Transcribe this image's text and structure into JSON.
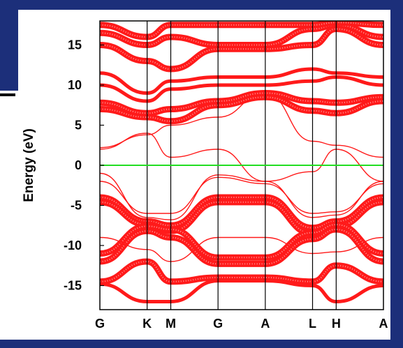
{
  "chart_data": {
    "type": "line",
    "title": "",
    "xlabel": "",
    "ylabel": "Energy (eV)",
    "ylim": [
      -18,
      18
    ],
    "yticks": [
      15,
      10,
      5,
      0,
      -5,
      -10,
      -15
    ],
    "k_points": [
      "G",
      "K",
      "M",
      "G",
      "A",
      "L",
      "H",
      "A"
    ],
    "k_positions": [
      0,
      1,
      1.5,
      2.5,
      3.5,
      4.5,
      5,
      6
    ],
    "fermi_level": 0,
    "colors": {
      "bands": "#ff1a1a",
      "fermi": "#22dd22",
      "frame": "#000000",
      "background_band": "#1c2f7a"
    },
    "series": [
      {
        "x": [
          0,
          1,
          1.5,
          2.5,
          3.5,
          4.5,
          5,
          6
        ],
        "values": [
          -4,
          -7,
          -7.5,
          -4,
          -4,
          -7.8,
          -7,
          -4
        ],
        "weight": "heavy"
      },
      {
        "x": [
          0,
          1,
          1.5,
          2.5,
          3.5,
          4.5,
          5,
          6
        ],
        "values": [
          -4.6,
          -7.4,
          -8.2,
          -4.6,
          -4.6,
          -8.5,
          -7.6,
          -4.6
        ],
        "weight": "heavy"
      },
      {
        "x": [
          0,
          1,
          1.5,
          2.5,
          3.5,
          4.5,
          5,
          6
        ],
        "values": [
          -11,
          -7.6,
          -8,
          -11.5,
          -11.5,
          -8.4,
          -7.4,
          -11
        ],
        "weight": "heavy"
      },
      {
        "x": [
          0,
          1,
          1.5,
          2.5,
          3.5,
          4.5,
          5,
          6
        ],
        "values": [
          -12,
          -8.2,
          -9,
          -12.3,
          -12.3,
          -9.2,
          -8,
          -12
        ],
        "weight": "heavy"
      },
      {
        "x": [
          0,
          1,
          1.5,
          2.5,
          3.5,
          4.5,
          5,
          6
        ],
        "values": [
          -14.5,
          -12,
          -14.5,
          -14,
          -14,
          -14.5,
          -12.5,
          -14.5
        ],
        "weight": "heavy"
      },
      {
        "x": [
          0,
          1,
          1.5,
          2.5,
          3.5,
          4.5,
          5,
          6
        ],
        "values": [
          -14.8,
          -17,
          -17,
          -14.4,
          -14.4,
          -15,
          -17,
          -15
        ],
        "weight": "medium"
      },
      {
        "x": [
          0,
          1,
          1.5,
          2.5,
          3.5,
          4.5,
          5,
          6
        ],
        "values": [
          -1,
          -6.5,
          -6.8,
          -1.2,
          -2,
          -6.5,
          -6.2,
          -2
        ],
        "weight": "thin"
      },
      {
        "x": [
          0,
          1,
          1.5,
          2.5,
          3.5,
          4.5,
          5,
          6
        ],
        "values": [
          -2,
          -6,
          -6,
          -1.5,
          -2.3,
          -6,
          -5.8,
          -2.3
        ],
        "weight": "thin"
      },
      {
        "x": [
          0,
          1,
          1.5,
          2.5,
          3.5,
          4.5,
          5,
          6
        ],
        "values": [
          -9,
          -10.5,
          -12,
          -9,
          -9,
          -11,
          -10.8,
          -9
        ],
        "weight": "thin"
      },
      {
        "x": [
          0,
          1,
          1.5,
          2.5,
          3.5,
          4.5,
          5,
          6
        ],
        "values": [
          2,
          4,
          1,
          2,
          -2,
          -0.8,
          2,
          -2
        ],
        "weight": "thin"
      },
      {
        "x": [
          0,
          1,
          1.5,
          2.5,
          3.5,
          4.5,
          5,
          6
        ],
        "values": [
          2.2,
          3.8,
          5,
          6,
          9,
          3,
          2.5,
          1
        ],
        "weight": "thin"
      },
      {
        "x": [
          0,
          1,
          1.5,
          2.5,
          3.5,
          4.5,
          5,
          6
        ],
        "values": [
          7,
          6,
          5.5,
          7.5,
          8.5,
          6.8,
          6.5,
          8
        ],
        "weight": "heavy"
      },
      {
        "x": [
          0,
          1,
          1.5,
          2.5,
          3.5,
          4.5,
          5,
          6
        ],
        "values": [
          7.8,
          6.5,
          7,
          8,
          9,
          8,
          7.8,
          8.5
        ],
        "weight": "heavy"
      },
      {
        "x": [
          0,
          1,
          1.5,
          2.5,
          3.5,
          4.5,
          5,
          6
        ],
        "values": [
          10,
          8,
          9.5,
          10,
          10,
          10.5,
          11,
          10
        ],
        "weight": "medium"
      },
      {
        "x": [
          0,
          1,
          1.5,
          2.5,
          3.5,
          4.5,
          5,
          6
        ],
        "values": [
          11.5,
          9,
          10.5,
          11,
          11,
          12,
          11.5,
          11
        ],
        "weight": "medium"
      },
      {
        "x": [
          0,
          1,
          1.5,
          2.5,
          3.5,
          4.5,
          5,
          6
        ],
        "values": [
          15,
          13,
          12,
          14.5,
          14.5,
          15,
          17,
          15
        ],
        "weight": "heavy"
      },
      {
        "x": [
          0,
          1,
          1.5,
          2.5,
          3.5,
          4.5,
          5,
          6
        ],
        "values": [
          16.5,
          15,
          16,
          15,
          15,
          17,
          17.5,
          16
        ],
        "weight": "heavy"
      },
      {
        "x": [
          0,
          1,
          1.5,
          2.5,
          3.5,
          4.5,
          5,
          6
        ],
        "values": [
          17.5,
          16,
          17.5,
          17.5,
          17.5,
          17.5,
          17.8,
          17.5
        ],
        "weight": "heavy"
      }
    ]
  }
}
